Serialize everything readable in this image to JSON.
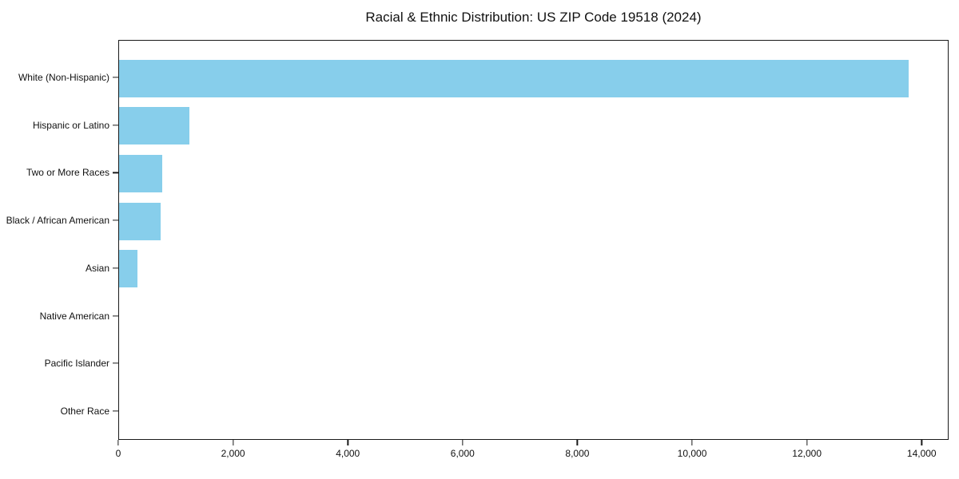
{
  "chart_data": {
    "type": "bar",
    "orientation": "horizontal",
    "title": "Racial & Ethnic Distribution: US ZIP Code 19518 (2024)",
    "categories": [
      "White (Non-Hispanic)",
      "Hispanic or Latino",
      "Two or More Races",
      "Black / African American",
      "Asian",
      "Native American",
      "Pacific Islander",
      "Other Race"
    ],
    "values": [
      13760,
      1220,
      750,
      720,
      325,
      0,
      0,
      0
    ],
    "xlabel": "",
    "ylabel": "",
    "xlim": [
      0,
      14470
    ],
    "xticks": [
      0,
      2000,
      4000,
      6000,
      8000,
      10000,
      12000,
      14000
    ],
    "xtick_labels": [
      "0",
      "2,000",
      "4,000",
      "6,000",
      "8,000",
      "10,000",
      "12,000",
      "14,000"
    ],
    "bar_color": "#87CEEB",
    "spine_color": "#1a1a1a",
    "grid": false,
    "legend": null
  }
}
